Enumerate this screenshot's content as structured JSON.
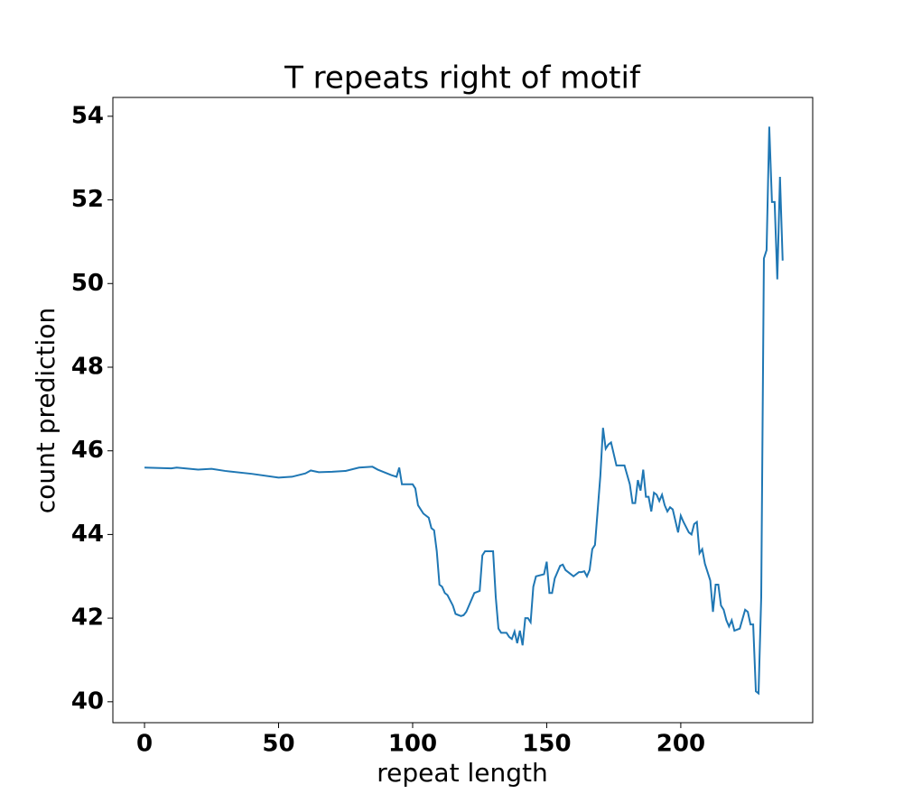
{
  "chart_data": {
    "type": "line",
    "title": "T repeats right of motif",
    "x_label": "repeat length",
    "y_label": "count prediction",
    "xlim": [
      -11.8,
      249.2
    ],
    "ylim": [
      39.5,
      54.45
    ],
    "xticks": [
      0,
      50,
      100,
      150,
      200
    ],
    "yticks": [
      40,
      42,
      44,
      46,
      48,
      50,
      52,
      54
    ],
    "series": [
      {
        "color": "#1f77b4",
        "x": [
          0,
          10,
          12,
          20,
          25,
          30,
          40,
          50,
          55,
          60,
          62,
          65,
          70,
          75,
          80,
          85,
          87,
          92,
          94,
          95,
          96,
          100,
          101,
          102,
          104,
          106,
          107,
          108,
          109,
          110,
          111,
          112,
          113,
          115,
          116,
          118,
          119,
          120,
          121,
          123,
          125,
          126,
          127,
          130,
          131,
          132,
          133,
          135,
          136,
          137,
          138,
          139,
          140,
          141,
          142,
          143,
          144,
          145,
          146,
          149,
          150,
          151,
          152,
          153,
          155,
          156,
          157,
          159,
          160,
          162,
          163,
          164,
          165,
          166,
          167,
          168,
          170,
          171,
          172,
          173,
          174,
          176,
          179,
          181,
          182,
          183,
          184,
          185,
          186,
          187,
          188,
          189,
          190,
          191,
          192,
          193,
          194,
          195,
          196,
          197,
          199,
          200,
          201,
          203,
          204,
          205,
          206,
          207,
          208,
          209,
          211,
          212,
          213,
          214,
          215,
          216,
          217,
          218,
          219,
          220,
          222,
          224,
          225,
          226,
          227,
          228,
          229,
          230,
          231,
          232,
          233,
          234,
          235,
          236,
          237,
          238
        ],
        "values": [
          45.6,
          45.58,
          45.6,
          45.55,
          45.57,
          45.52,
          45.45,
          45.36,
          45.38,
          45.46,
          45.53,
          45.49,
          45.5,
          45.52,
          45.6,
          45.62,
          45.55,
          45.42,
          45.38,
          45.6,
          45.2,
          45.2,
          45.1,
          44.7,
          44.5,
          44.4,
          44.15,
          44.1,
          43.6,
          42.8,
          42.75,
          42.6,
          42.55,
          42.3,
          42.1,
          42.05,
          42.07,
          42.15,
          42.3,
          42.6,
          42.65,
          43.5,
          43.6,
          43.6,
          42.5,
          41.75,
          41.65,
          41.65,
          41.55,
          41.5,
          41.68,
          41.4,
          41.7,
          41.35,
          42.0,
          42.0,
          41.9,
          42.75,
          43.0,
          43.05,
          43.35,
          42.6,
          42.6,
          42.95,
          43.25,
          43.28,
          43.15,
          43.05,
          43.0,
          43.1,
          43.1,
          43.12,
          43.0,
          43.15,
          43.65,
          43.75,
          45.4,
          46.55,
          46.05,
          46.15,
          46.2,
          45.65,
          45.65,
          45.2,
          44.75,
          44.75,
          45.3,
          45.05,
          45.55,
          44.9,
          44.9,
          44.55,
          45.0,
          44.95,
          44.8,
          44.95,
          44.7,
          44.55,
          44.65,
          44.6,
          44.05,
          44.45,
          44.3,
          44.05,
          44.0,
          44.25,
          44.3,
          43.55,
          43.65,
          43.3,
          42.9,
          42.15,
          42.8,
          42.8,
          42.3,
          42.2,
          41.95,
          41.8,
          41.95,
          41.7,
          41.75,
          42.2,
          42.15,
          41.85,
          41.85,
          40.25,
          40.2,
          42.5,
          50.6,
          50.8,
          53.75,
          51.95,
          51.95,
          50.1,
          52.55,
          50.55
        ]
      }
    ]
  }
}
